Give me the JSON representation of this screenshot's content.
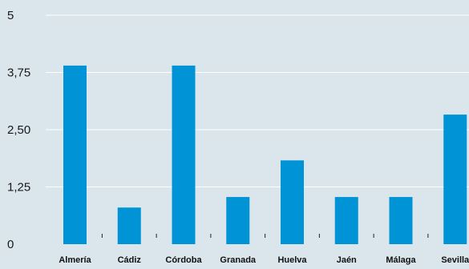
{
  "chart_data": {
    "type": "bar",
    "title": "",
    "xlabel": "",
    "ylabel": "",
    "categories": [
      "Almería",
      "Cádiz",
      "Córdoba",
      "Granada",
      "Huelva",
      "Jaén",
      "Málaga",
      "Sevilla"
    ],
    "values": [
      3.9,
      0.8,
      3.9,
      1.03,
      1.83,
      1.03,
      1.03,
      2.83
    ],
    "ylim": [
      0,
      5
    ],
    "yticks": [
      0,
      1.25,
      2.5,
      3.75,
      5
    ],
    "ytick_labels": [
      "0",
      "1,25",
      "2,50",
      "3,75",
      "5"
    ],
    "grid": true,
    "colors": {
      "bar": "#0093d6",
      "background": "#dae5ec",
      "grid": "#ffffff"
    }
  }
}
